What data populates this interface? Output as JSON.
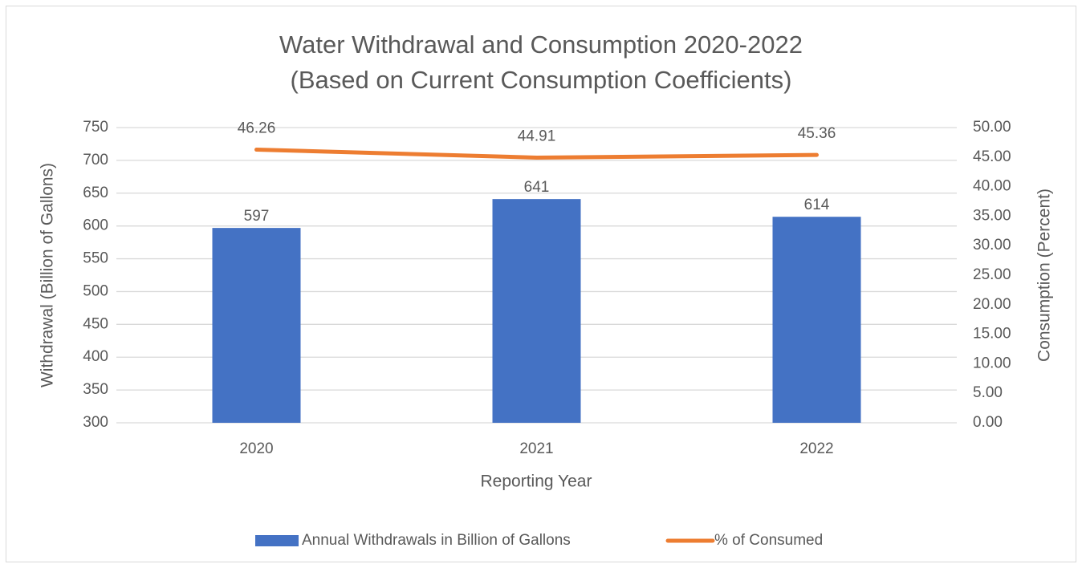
{
  "chart_data": {
    "type": "bar-line",
    "title": [
      "Water Withdrawal and Consumption 2020-2022",
      "(Based on Current Consumption Coefficients)"
    ],
    "x_label": "Reporting Year",
    "y_label": "Withdrawal (Billion of Gallons)",
    "y2_label": "Consumption (Percent)",
    "categories": [
      "2020",
      "2021",
      "2022"
    ],
    "series": [
      {
        "name": "Annual Withdrawals in Billion of Gallons",
        "type": "bar",
        "color": "#4472c4",
        "values": [
          597,
          641,
          614
        ]
      },
      {
        "name": "% of Consumed",
        "type": "line",
        "color": "#ed7d31",
        "axis": "y2",
        "values": [
          46.26,
          44.91,
          45.36
        ]
      }
    ],
    "ylim": [
      300,
      750
    ],
    "yticks": [
      300,
      350,
      400,
      450,
      500,
      550,
      600,
      650,
      700,
      750
    ],
    "y2lim": [
      0,
      50
    ],
    "y2ticks": [
      {
        "value": 0,
        "label": "0.00"
      },
      {
        "value": 5,
        "label": "5.00"
      },
      {
        "value": 10,
        "label": "10.00"
      },
      {
        "value": 15,
        "label": "15.00"
      },
      {
        "value": 20,
        "label": "20.00"
      },
      {
        "value": 25,
        "label": "25.00"
      },
      {
        "value": 30,
        "label": "30.00"
      },
      {
        "value": 35,
        "label": "35.00"
      },
      {
        "value": 40,
        "label": "40.00"
      },
      {
        "value": 45,
        "label": "45.00"
      },
      {
        "value": 50,
        "label": "50.00"
      }
    ],
    "grid": true,
    "legend": "bottom"
  }
}
